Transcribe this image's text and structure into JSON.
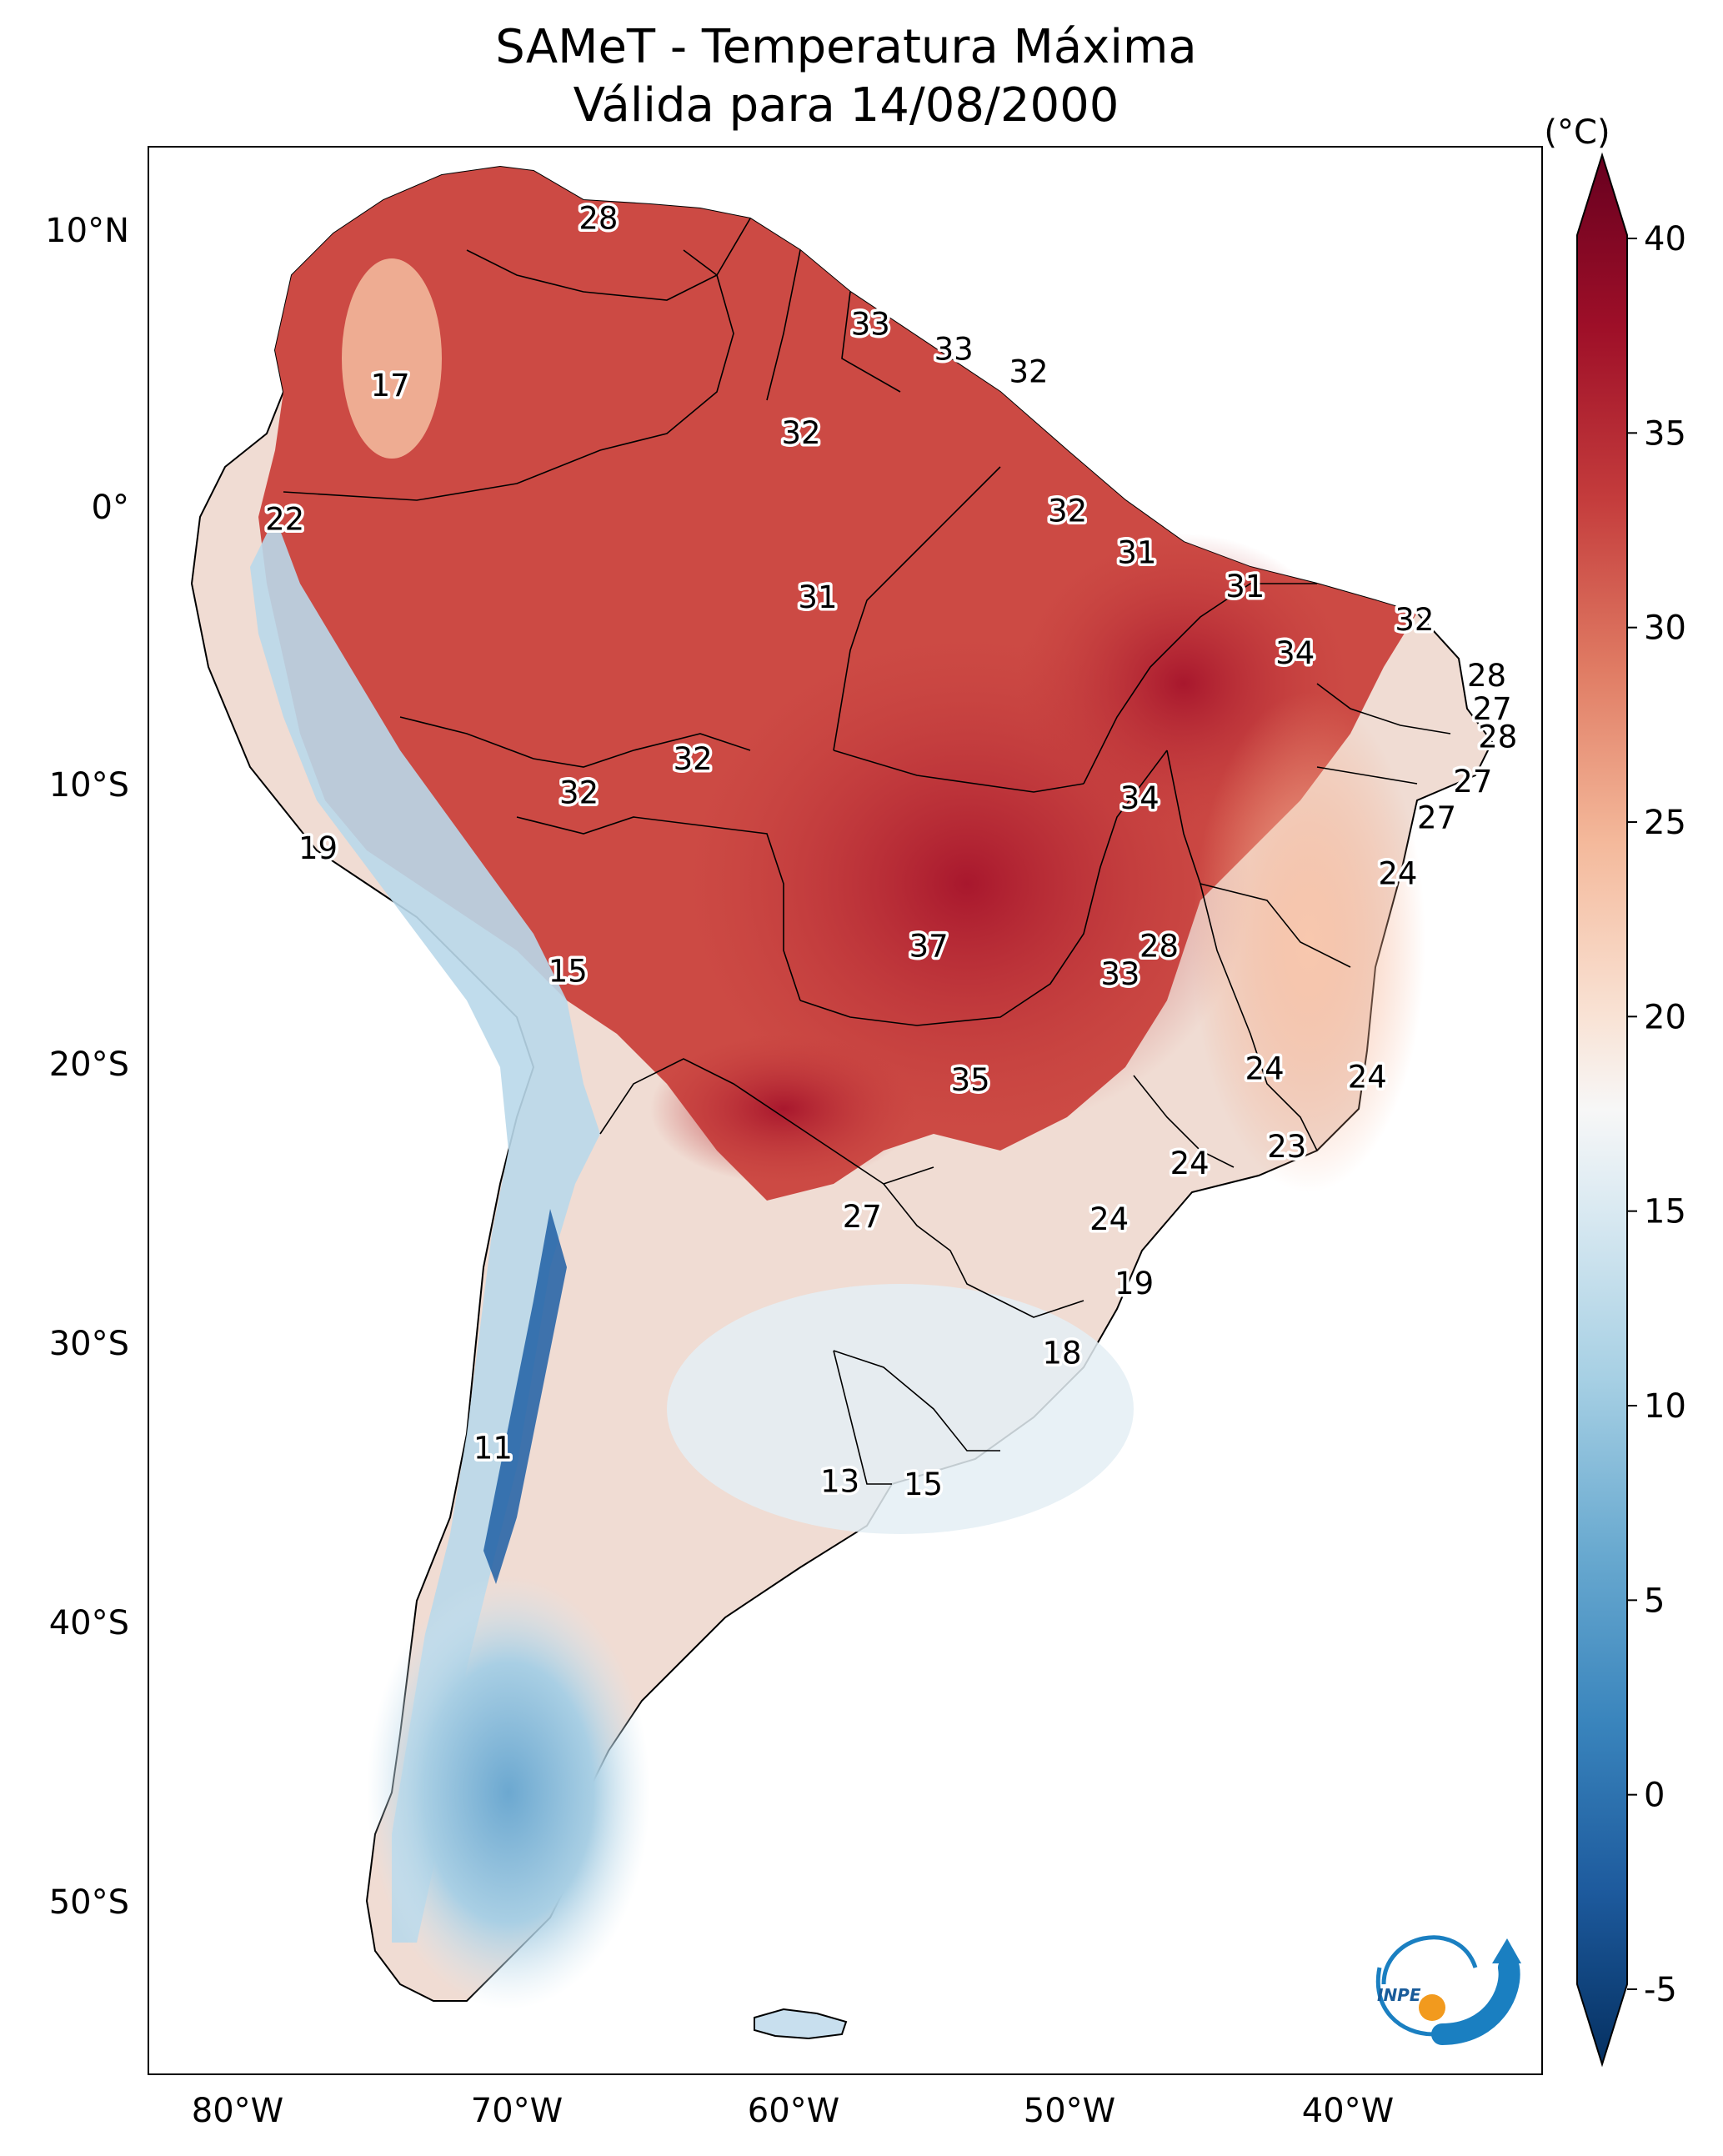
{
  "title": {
    "line1": "SAMeT - Temperatura Máxima",
    "line2": "Válida para 14/08/2000"
  },
  "map": {
    "lon_ticks": [
      "80°W",
      "70°W",
      "60°W",
      "50°W",
      "40°W"
    ],
    "lat_ticks": [
      "10°N",
      "0°",
      "10°S",
      "20°S",
      "30°S",
      "40°S",
      "50°S"
    ]
  },
  "colorbar": {
    "unit": "(°C)",
    "ticks": [
      "40",
      "35",
      "30",
      "25",
      "20",
      "15",
      "10",
      "5",
      "0",
      "-5"
    ],
    "colors": {
      "max": "#67001f",
      "hot": "#c43c3c",
      "warm": "#f3a481",
      "neutral": "#f7f7f7",
      "cool": "#a7d0e4",
      "cold": "#2166ac",
      "min": "#053061"
    }
  },
  "point_labels": [
    {
      "value": "28",
      "lon": -67.0,
      "lat": 10.5
    },
    {
      "value": "17",
      "lon": -74.5,
      "lat": 4.5
    },
    {
      "value": "22",
      "lon": -78.3,
      "lat": -0.3
    },
    {
      "value": "33",
      "lon": -57.2,
      "lat": 6.7
    },
    {
      "value": "33",
      "lon": -54.2,
      "lat": 5.8
    },
    {
      "value": "32",
      "lon": -51.5,
      "lat": 5.0
    },
    {
      "value": "32",
      "lon": -59.7,
      "lat": 2.8
    },
    {
      "value": "32",
      "lon": -50.1,
      "lat": 0.0
    },
    {
      "value": "31",
      "lon": -47.6,
      "lat": -1.5
    },
    {
      "value": "31",
      "lon": -59.1,
      "lat": -3.1
    },
    {
      "value": "31",
      "lon": -43.7,
      "lat": -2.7
    },
    {
      "value": "32",
      "lon": -37.6,
      "lat": -3.9
    },
    {
      "value": "34",
      "lon": -41.9,
      "lat": -5.1
    },
    {
      "value": "28",
      "lon": -35.0,
      "lat": -5.9
    },
    {
      "value": "27",
      "lon": -34.8,
      "lat": -7.1
    },
    {
      "value": "28",
      "lon": -34.6,
      "lat": -8.1
    },
    {
      "value": "32",
      "lon": -63.6,
      "lat": -8.9
    },
    {
      "value": "32",
      "lon": -67.7,
      "lat": -10.1
    },
    {
      "value": "34",
      "lon": -47.5,
      "lat": -10.3
    },
    {
      "value": "27",
      "lon": -35.5,
      "lat": -9.7
    },
    {
      "value": "27",
      "lon": -36.8,
      "lat": -11.0
    },
    {
      "value": "19",
      "lon": -77.1,
      "lat": -12.1
    },
    {
      "value": "24",
      "lon": -38.2,
      "lat": -13.0
    },
    {
      "value": "15",
      "lon": -68.1,
      "lat": -16.5
    },
    {
      "value": "37",
      "lon": -55.1,
      "lat": -15.6
    },
    {
      "value": "28",
      "lon": -46.8,
      "lat": -15.6
    },
    {
      "value": "33",
      "lon": -48.2,
      "lat": -16.6
    },
    {
      "value": "24",
      "lon": -43.0,
      "lat": -20.0
    },
    {
      "value": "24",
      "lon": -39.3,
      "lat": -20.3
    },
    {
      "value": "35",
      "lon": -53.6,
      "lat": -20.4
    },
    {
      "value": "23",
      "lon": -42.2,
      "lat": -22.8
    },
    {
      "value": "24",
      "lon": -45.7,
      "lat": -23.4
    },
    {
      "value": "27",
      "lon": -57.5,
      "lat": -25.3
    },
    {
      "value": "24",
      "lon": -48.6,
      "lat": -25.4
    },
    {
      "value": "19",
      "lon": -47.7,
      "lat": -27.7
    },
    {
      "value": "18",
      "lon": -50.3,
      "lat": -30.2
    },
    {
      "value": "11",
      "lon": -70.8,
      "lat": -33.6
    },
    {
      "value": "13",
      "lon": -58.3,
      "lat": -34.8
    },
    {
      "value": "15",
      "lon": -55.3,
      "lat": -34.9
    }
  ]
}
